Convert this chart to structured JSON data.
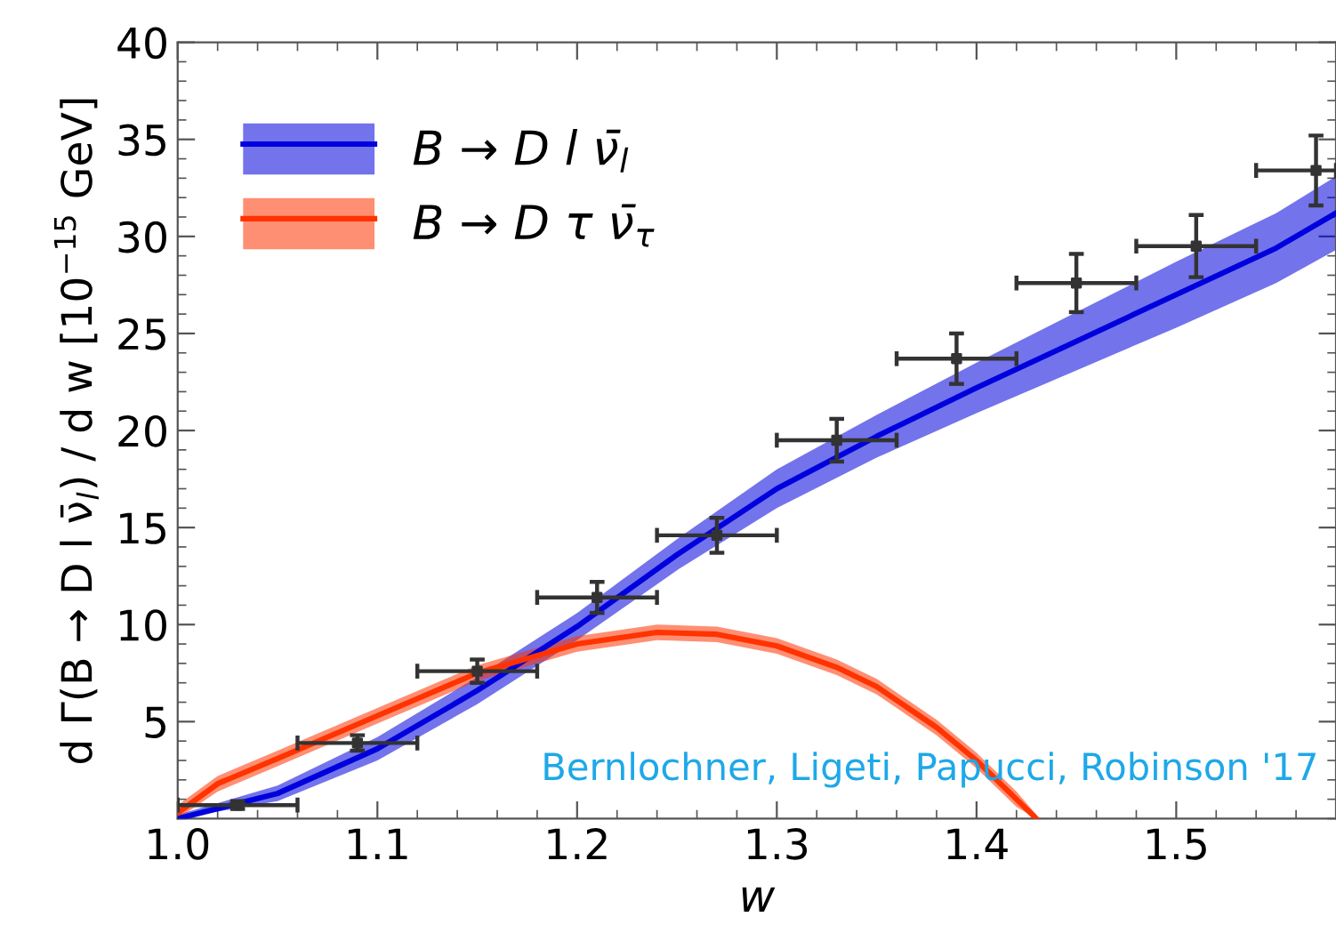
{
  "chart_data": {
    "type": "line",
    "xlabel": "w",
    "ylabel": "d Γ(B → D l ν̄$_{l}$) / d w [10$^{−15}$ GeV]",
    "xlim": [
      1.0,
      1.58
    ],
    "ylim": [
      0,
      40
    ],
    "xticks": [
      {
        "value": 1.0,
        "label": "1.0"
      },
      {
        "value": 1.1,
        "label": "1.1"
      },
      {
        "value": 1.2,
        "label": "1.2"
      },
      {
        "value": 1.3,
        "label": "1.3"
      },
      {
        "value": 1.4,
        "label": "1.4"
      },
      {
        "value": 1.5,
        "label": "1.5"
      }
    ],
    "yticks": [
      5,
      10,
      15,
      20,
      25,
      30,
      35,
      40
    ],
    "grid": false,
    "legend": "top left",
    "series": [
      {
        "name": "B → D l ν̄$_{l}$",
        "color": "#0000dd",
        "x": [
          1.0,
          1.05,
          1.1,
          1.15,
          1.2,
          1.25,
          1.3,
          1.35,
          1.4,
          1.45,
          1.5,
          1.55,
          1.58
        ],
        "values": [
          0,
          1.3,
          3.6,
          6.6,
          9.9,
          13.6,
          17.0,
          19.7,
          22.2,
          24.6,
          27.0,
          29.4,
          31.2
        ],
        "lower": [
          0,
          0.9,
          3.0,
          5.9,
          9.2,
          12.8,
          16.0,
          18.6,
          20.9,
          23.1,
          25.3,
          27.6,
          29.3
        ],
        "upper": [
          0.2,
          1.7,
          4.2,
          7.3,
          10.6,
          14.4,
          18.0,
          20.8,
          23.5,
          26.1,
          28.7,
          31.2,
          33.1
        ]
      },
      {
        "name": "B → D τ ν̄$_{τ}$",
        "color": "#ff3300",
        "x": [
          1.0,
          1.02,
          1.05,
          1.1,
          1.15,
          1.2,
          1.24,
          1.27,
          1.3,
          1.33,
          1.35,
          1.38,
          1.4,
          1.42,
          1.43
        ],
        "values": [
          0.3,
          1.8,
          3.1,
          5.3,
          7.5,
          9.0,
          9.6,
          9.5,
          8.9,
          7.8,
          6.8,
          4.7,
          3.0,
          1.0,
          0
        ],
        "lower": [
          0,
          1.4,
          2.7,
          4.9,
          7.1,
          8.6,
          9.2,
          9.1,
          8.5,
          7.4,
          6.4,
          4.3,
          2.6,
          0.6,
          0
        ],
        "upper": [
          0.7,
          2.2,
          3.5,
          5.7,
          7.9,
          9.4,
          10.0,
          9.9,
          9.3,
          8.2,
          7.2,
          5.1,
          3.4,
          1.4,
          0.2
        ]
      },
      {
        "type": "scatter",
        "color": "#333333",
        "marker": "square",
        "x": [
          1.03,
          1.09,
          1.15,
          1.21,
          1.27,
          1.33,
          1.39,
          1.45,
          1.51,
          1.57
        ],
        "values": [
          0.7,
          3.9,
          7.6,
          11.4,
          14.6,
          19.5,
          23.7,
          27.6,
          29.5,
          33.4
        ],
        "errors": [
          0.2,
          0.4,
          0.6,
          0.8,
          0.9,
          1.1,
          1.3,
          1.5,
          1.6,
          1.8
        ],
        "xerrors": [
          0.03,
          0.03,
          0.03,
          0.03,
          0.03,
          0.03,
          0.03,
          0.03,
          0.03,
          [
            1.54,
            1.58
          ]
        ]
      }
    ],
    "annotations": [
      "Bernlochner, Ligeti, Papucci, Robinson '17"
    ]
  }
}
